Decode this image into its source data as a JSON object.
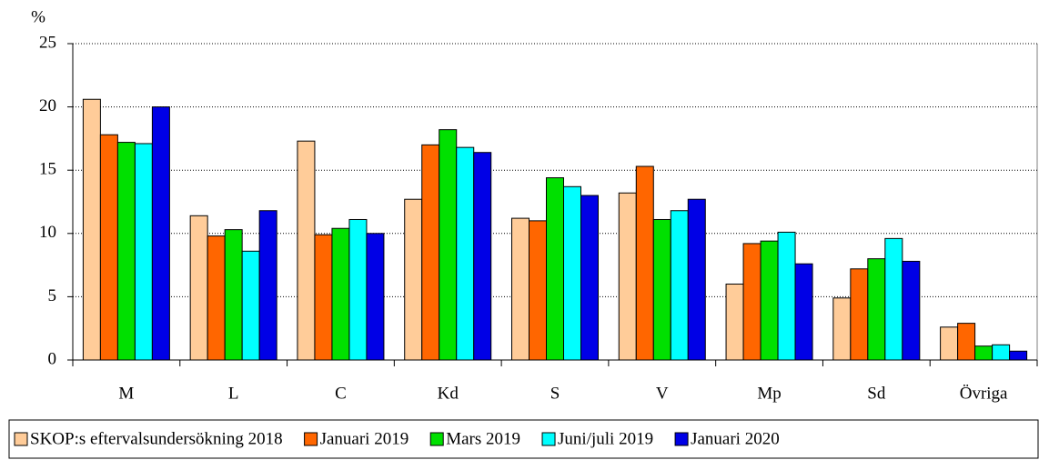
{
  "chart_data": {
    "type": "bar",
    "y_label": "%",
    "categories": [
      "M",
      "L",
      "C",
      "Kd",
      "S",
      "V",
      "Mp",
      "Sd",
      "Övriga"
    ],
    "series": [
      {
        "name": "SKOP:s eftervalsundersökning 2018",
        "color": "#ffcc99",
        "values": [
          20.6,
          11.4,
          17.3,
          12.7,
          11.2,
          13.2,
          6.0,
          4.9,
          2.6
        ]
      },
      {
        "name": "Januari 2019",
        "color": "#ff6600",
        "values": [
          17.8,
          9.8,
          9.9,
          17.0,
          11.0,
          15.3,
          9.2,
          7.2,
          2.9
        ]
      },
      {
        "name": "Mars 2019",
        "color": "#00e000",
        "values": [
          17.2,
          10.3,
          10.4,
          18.2,
          14.4,
          11.1,
          9.4,
          8.0,
          1.1
        ]
      },
      {
        "name": "Juni/juli 2019",
        "color": "#00ffff",
        "values": [
          17.1,
          8.6,
          11.1,
          16.8,
          13.7,
          11.8,
          10.1,
          9.6,
          1.2
        ]
      },
      {
        "name": "Januari 2020",
        "color": "#0000e6",
        "values": [
          20.0,
          11.8,
          10.0,
          16.4,
          13.0,
          12.7,
          7.6,
          7.8,
          0.7
        ]
      }
    ],
    "ylim": [
      0,
      25
    ],
    "yticks": [
      0,
      5,
      10,
      15,
      20,
      25
    ],
    "grid": true,
    "legend": "bottom"
  }
}
